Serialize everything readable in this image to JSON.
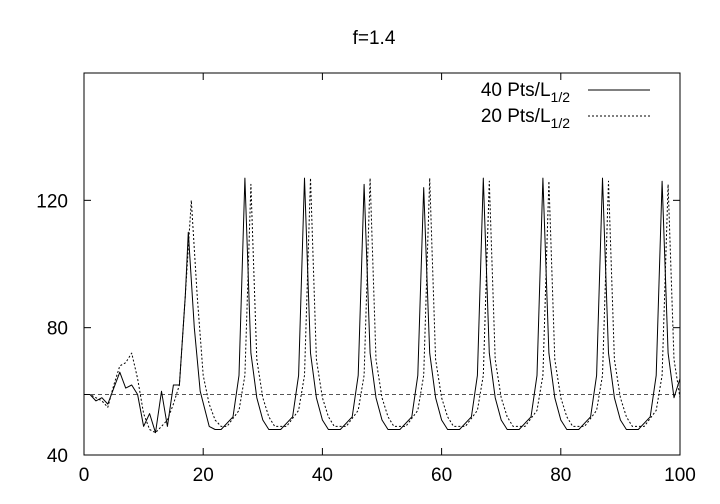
{
  "chart_data": {
    "type": "line",
    "title": "f=1.4",
    "xlabel": "",
    "ylabel": "",
    "xlim": [
      0,
      100
    ],
    "ylim": [
      40,
      120
    ],
    "ylim_plot_top": 160,
    "xticks": [
      0,
      20,
      40,
      60,
      80,
      100
    ],
    "yticks": [
      40,
      80,
      120
    ],
    "grid": false,
    "legend_position": "top-right",
    "legend": [
      {
        "main": "40 Pts/L",
        "sub": "1/2",
        "style": "solid"
      },
      {
        "main": "20 Pts/L",
        "sub": "1/2",
        "style": "dotted"
      }
    ],
    "reference_line": {
      "y": 59,
      "style": "dashed"
    },
    "series": [
      {
        "name": "40 Pts/L1/2",
        "style": "solid",
        "x": [
          0,
          1,
          2,
          3,
          4,
          5,
          6,
          7,
          8,
          9,
          10,
          11,
          12,
          13,
          14,
          15,
          16,
          17,
          17.5,
          18.5,
          19.5,
          21,
          22,
          23,
          25,
          26,
          27,
          28,
          29,
          30,
          31,
          32,
          33,
          35,
          36,
          37,
          38,
          39,
          40,
          41,
          42,
          43,
          45,
          46,
          47,
          48,
          49,
          50,
          51,
          52,
          53,
          55,
          56,
          57,
          58,
          59,
          60,
          61,
          62,
          63,
          65,
          66,
          67,
          68,
          69,
          70,
          71,
          72,
          73,
          75,
          76,
          77,
          78,
          79,
          80,
          81,
          82,
          83,
          85,
          86,
          87,
          88,
          89,
          90,
          91,
          92,
          93,
          95,
          96,
          97,
          98,
          99,
          100
        ],
        "y": [
          59,
          59,
          57,
          58,
          56,
          61,
          66,
          61,
          62,
          59,
          49,
          53,
          47,
          60,
          49,
          62,
          62,
          90,
          110,
          80,
          60,
          49,
          48,
          48,
          52,
          65,
          127,
          72,
          58,
          51,
          48,
          48,
          48,
          52,
          65,
          127,
          72,
          58,
          51,
          48,
          48,
          48,
          52,
          65,
          125,
          72,
          58,
          51,
          48,
          48,
          48,
          52,
          65,
          124,
          72,
          58,
          51,
          48,
          48,
          48,
          52,
          65,
          127,
          72,
          58,
          51,
          48,
          48,
          48,
          52,
          65,
          127,
          72,
          58,
          51,
          48,
          48,
          48,
          52,
          65,
          127,
          72,
          58,
          51,
          48,
          48,
          48,
          52,
          65,
          126,
          72,
          58,
          64
        ]
      },
      {
        "name": "20 Pts/L1/2",
        "style": "dotted",
        "x": [
          0,
          1,
          2,
          3,
          4,
          5,
          6,
          7,
          8,
          9,
          10,
          11,
          12,
          13,
          14,
          15,
          16,
          17,
          18,
          19,
          20,
          21,
          22,
          23,
          24,
          26,
          27,
          28,
          29,
          30,
          31,
          32,
          33,
          34,
          36,
          37,
          38,
          39,
          40,
          41,
          42,
          43,
          44,
          46,
          47,
          48,
          49,
          50,
          51,
          52,
          53,
          54,
          56,
          57,
          58,
          59,
          60,
          61,
          62,
          63,
          64,
          66,
          67,
          68,
          69,
          70,
          71,
          72,
          73,
          74,
          76,
          77,
          78,
          79,
          80,
          81,
          82,
          83,
          84,
          86,
          87,
          88,
          89,
          90,
          91,
          92,
          93,
          94,
          96,
          97,
          98,
          99,
          100
        ],
        "y": [
          59,
          59,
          58,
          57,
          55,
          62,
          68,
          69,
          72,
          64,
          53,
          48,
          47,
          49,
          51,
          56,
          62,
          90,
          120,
          90,
          65,
          56,
          51,
          49,
          49,
          54,
          65,
          125,
          70,
          58,
          52,
          49,
          49,
          49,
          54,
          65,
          127,
          70,
          58,
          52,
          49,
          49,
          49,
          54,
          65,
          127,
          70,
          58,
          52,
          49,
          49,
          49,
          54,
          65,
          127,
          70,
          58,
          52,
          49,
          49,
          49,
          54,
          65,
          126,
          70,
          58,
          52,
          49,
          49,
          49,
          54,
          65,
          126,
          70,
          58,
          52,
          49,
          49,
          49,
          54,
          65,
          126,
          70,
          58,
          52,
          49,
          49,
          49,
          54,
          65,
          125,
          70,
          58
        ]
      }
    ]
  }
}
